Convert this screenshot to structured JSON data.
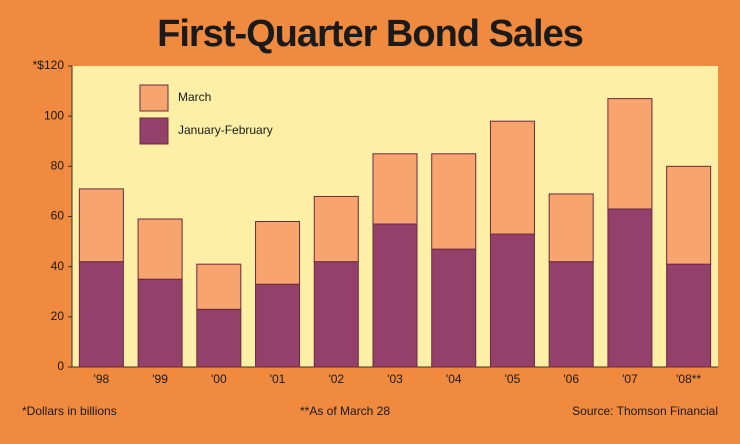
{
  "chart_data": {
    "type": "stacked-bar",
    "title": "First-Quarter Bond Sales",
    "categories": [
      "'98",
      "'99",
      "'00",
      "'01",
      "'02",
      "'03",
      "'04",
      "'05",
      "'06",
      "'07",
      "'08**"
    ],
    "series": [
      {
        "name": "January-February",
        "color": "#93406a",
        "values": [
          42,
          35,
          23,
          33,
          42,
          57,
          47,
          53,
          42,
          63,
          41
        ]
      },
      {
        "name": "March",
        "color": "#f7a46e",
        "values": [
          29,
          24,
          18,
          25,
          26,
          28,
          38,
          45,
          27,
          44,
          39
        ]
      }
    ],
    "ylim": [
      0,
      120
    ],
    "yticks": [
      0,
      20,
      40,
      60,
      80,
      100,
      {
        "value": 120,
        "label": "*$120"
      }
    ],
    "legend": "top-left",
    "notes": [
      "*Dollars in billions",
      "**As of March 28",
      "Source: Thomson Financial"
    ]
  }
}
